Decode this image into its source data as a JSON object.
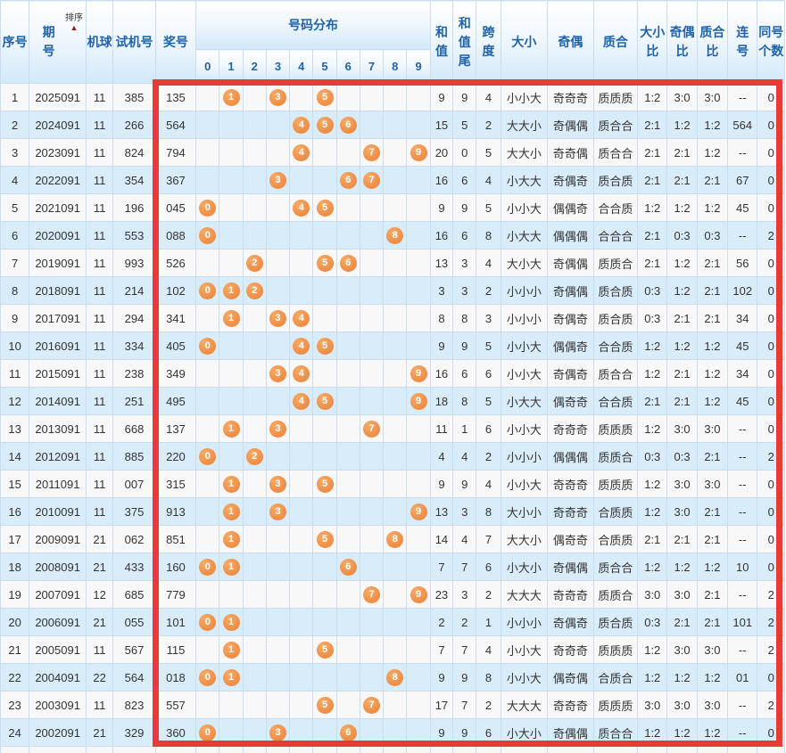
{
  "colors": {
    "header_text": "#1f63a8",
    "ball_orange": "#ef9049",
    "highlight_box_red": "#e83b38",
    "even_row_blue": "#d9ecf9",
    "dist_cell_yellow": "#fcf9e1"
  },
  "table": {
    "headers": {
      "seq": "序号",
      "period": "期\n号",
      "sort": "排序",
      "machine": "机球",
      "test": "试机号",
      "prize": "奖号",
      "distribution": "号码分布",
      "digits": [
        "0",
        "1",
        "2",
        "3",
        "4",
        "5",
        "6",
        "7",
        "8",
        "9"
      ],
      "sum": "和\n值",
      "sum_tail": "和\n值\n尾",
      "span": "跨\n度",
      "size": "大小",
      "parity": "奇偶",
      "prime": "质合",
      "size_ratio": "大小\n比",
      "parity_ratio": "奇偶\n比",
      "prime_ratio": "质合\n比",
      "consecutive": "连\n号",
      "same_count": "同号\n个数"
    },
    "rows": [
      {
        "seq": 1,
        "period": "2025091",
        "machine": "11",
        "test": "385",
        "prize": "135",
        "balls": [
          1,
          3,
          5
        ],
        "sum": "9",
        "sum_tail": "9",
        "span": "4",
        "size": "小小大",
        "parity": "奇奇奇",
        "prime": "质质质",
        "size_ratio": "1:2",
        "parity_ratio": "3:0",
        "prime_ratio": "3:0",
        "consecutive": "--",
        "same_count": "0"
      },
      {
        "seq": 2,
        "period": "2024091",
        "machine": "11",
        "test": "266",
        "prize": "564",
        "balls": [
          4,
          5,
          6
        ],
        "sum": "15",
        "sum_tail": "5",
        "span": "2",
        "size": "大大小",
        "parity": "奇偶偶",
        "prime": "质合合",
        "size_ratio": "2:1",
        "parity_ratio": "1:2",
        "prime_ratio": "1:2",
        "consecutive": "564",
        "same_count": "0"
      },
      {
        "seq": 3,
        "period": "2023091",
        "machine": "11",
        "test": "824",
        "prize": "794",
        "balls": [
          4,
          7,
          9
        ],
        "sum": "20",
        "sum_tail": "0",
        "span": "5",
        "size": "大大小",
        "parity": "奇奇偶",
        "prime": "质合合",
        "size_ratio": "2:1",
        "parity_ratio": "2:1",
        "prime_ratio": "1:2",
        "consecutive": "--",
        "same_count": "0"
      },
      {
        "seq": 4,
        "period": "2022091",
        "machine": "11",
        "test": "354",
        "prize": "367",
        "balls": [
          3,
          6,
          7
        ],
        "sum": "16",
        "sum_tail": "6",
        "span": "4",
        "size": "小大大",
        "parity": "奇偶奇",
        "prime": "质合质",
        "size_ratio": "2:1",
        "parity_ratio": "2:1",
        "prime_ratio": "2:1",
        "consecutive": "67",
        "same_count": "0"
      },
      {
        "seq": 5,
        "period": "2021091",
        "machine": "11",
        "test": "196",
        "prize": "045",
        "balls": [
          0,
          4,
          5
        ],
        "sum": "9",
        "sum_tail": "9",
        "span": "5",
        "size": "小小大",
        "parity": "偶偶奇",
        "prime": "合合质",
        "size_ratio": "1:2",
        "parity_ratio": "1:2",
        "prime_ratio": "1:2",
        "consecutive": "45",
        "same_count": "0"
      },
      {
        "seq": 6,
        "period": "2020091",
        "machine": "11",
        "test": "553",
        "prize": "088",
        "balls": [
          0,
          8
        ],
        "sum": "16",
        "sum_tail": "6",
        "span": "8",
        "size": "小大大",
        "parity": "偶偶偶",
        "prime": "合合合",
        "size_ratio": "2:1",
        "parity_ratio": "0:3",
        "prime_ratio": "0:3",
        "consecutive": "--",
        "same_count": "2"
      },
      {
        "seq": 7,
        "period": "2019091",
        "machine": "11",
        "test": "993",
        "prize": "526",
        "balls": [
          2,
          5,
          6
        ],
        "sum": "13",
        "sum_tail": "3",
        "span": "4",
        "size": "大小大",
        "parity": "奇偶偶",
        "prime": "质质合",
        "size_ratio": "2:1",
        "parity_ratio": "1:2",
        "prime_ratio": "2:1",
        "consecutive": "56",
        "same_count": "0"
      },
      {
        "seq": 8,
        "period": "2018091",
        "machine": "11",
        "test": "214",
        "prize": "102",
        "balls": [
          0,
          1,
          2
        ],
        "sum": "3",
        "sum_tail": "3",
        "span": "2",
        "size": "小小小",
        "parity": "奇偶偶",
        "prime": "质合质",
        "size_ratio": "0:3",
        "parity_ratio": "1:2",
        "prime_ratio": "2:1",
        "consecutive": "102",
        "same_count": "0"
      },
      {
        "seq": 9,
        "period": "2017091",
        "machine": "11",
        "test": "294",
        "prize": "341",
        "balls": [
          1,
          3,
          4
        ],
        "sum": "8",
        "sum_tail": "8",
        "span": "3",
        "size": "小小小",
        "parity": "奇偶奇",
        "prime": "质合质",
        "size_ratio": "0:3",
        "parity_ratio": "2:1",
        "prime_ratio": "2:1",
        "consecutive": "34",
        "same_count": "0"
      },
      {
        "seq": 10,
        "period": "2016091",
        "machine": "11",
        "test": "334",
        "prize": "405",
        "balls": [
          0,
          4,
          5
        ],
        "sum": "9",
        "sum_tail": "9",
        "span": "5",
        "size": "小小大",
        "parity": "偶偶奇",
        "prime": "合合质",
        "size_ratio": "1:2",
        "parity_ratio": "1:2",
        "prime_ratio": "1:2",
        "consecutive": "45",
        "same_count": "0"
      },
      {
        "seq": 11,
        "period": "2015091",
        "machine": "11",
        "test": "238",
        "prize": "349",
        "balls": [
          3,
          4,
          9
        ],
        "sum": "16",
        "sum_tail": "6",
        "span": "6",
        "size": "小小大",
        "parity": "奇偶奇",
        "prime": "质合合",
        "size_ratio": "1:2",
        "parity_ratio": "2:1",
        "prime_ratio": "1:2",
        "consecutive": "34",
        "same_count": "0"
      },
      {
        "seq": 12,
        "period": "2014091",
        "machine": "11",
        "test": "251",
        "prize": "495",
        "balls": [
          4,
          5,
          9
        ],
        "sum": "18",
        "sum_tail": "8",
        "span": "5",
        "size": "小大大",
        "parity": "偶奇奇",
        "prime": "合合质",
        "size_ratio": "2:1",
        "parity_ratio": "2:1",
        "prime_ratio": "1:2",
        "consecutive": "45",
        "same_count": "0"
      },
      {
        "seq": 13,
        "period": "2013091",
        "machine": "11",
        "test": "668",
        "prize": "137",
        "balls": [
          1,
          3,
          7
        ],
        "sum": "11",
        "sum_tail": "1",
        "span": "6",
        "size": "小小大",
        "parity": "奇奇奇",
        "prime": "质质质",
        "size_ratio": "1:2",
        "parity_ratio": "3:0",
        "prime_ratio": "3:0",
        "consecutive": "--",
        "same_count": "0"
      },
      {
        "seq": 14,
        "period": "2012091",
        "machine": "11",
        "test": "885",
        "prize": "220",
        "balls": [
          0,
          2
        ],
        "sum": "4",
        "sum_tail": "4",
        "span": "2",
        "size": "小小小",
        "parity": "偶偶偶",
        "prime": "质质合",
        "size_ratio": "0:3",
        "parity_ratio": "0:3",
        "prime_ratio": "2:1",
        "consecutive": "--",
        "same_count": "2"
      },
      {
        "seq": 15,
        "period": "2011091",
        "machine": "11",
        "test": "007",
        "prize": "315",
        "balls": [
          1,
          3,
          5
        ],
        "sum": "9",
        "sum_tail": "9",
        "span": "4",
        "size": "小小大",
        "parity": "奇奇奇",
        "prime": "质质质",
        "size_ratio": "1:2",
        "parity_ratio": "3:0",
        "prime_ratio": "3:0",
        "consecutive": "--",
        "same_count": "0"
      },
      {
        "seq": 16,
        "period": "2010091",
        "machine": "11",
        "test": "375",
        "prize": "913",
        "balls": [
          1,
          3,
          9
        ],
        "sum": "13",
        "sum_tail": "3",
        "span": "8",
        "size": "大小小",
        "parity": "奇奇奇",
        "prime": "合质质",
        "size_ratio": "1:2",
        "parity_ratio": "3:0",
        "prime_ratio": "2:1",
        "consecutive": "--",
        "same_count": "0"
      },
      {
        "seq": 17,
        "period": "2009091",
        "machine": "21",
        "test": "062",
        "prize": "851",
        "balls": [
          1,
          5,
          8
        ],
        "sum": "14",
        "sum_tail": "4",
        "span": "7",
        "size": "大大小",
        "parity": "偶奇奇",
        "prime": "合质质",
        "size_ratio": "2:1",
        "parity_ratio": "2:1",
        "prime_ratio": "2:1",
        "consecutive": "--",
        "same_count": "0"
      },
      {
        "seq": 18,
        "period": "2008091",
        "machine": "21",
        "test": "433",
        "prize": "160",
        "balls": [
          0,
          1,
          6
        ],
        "sum": "7",
        "sum_tail": "7",
        "span": "6",
        "size": "小大小",
        "parity": "奇偶偶",
        "prime": "质合合",
        "size_ratio": "1:2",
        "parity_ratio": "1:2",
        "prime_ratio": "1:2",
        "consecutive": "10",
        "same_count": "0"
      },
      {
        "seq": 19,
        "period": "2007091",
        "machine": "12",
        "test": "685",
        "prize": "779",
        "balls": [
          7,
          9
        ],
        "sum": "23",
        "sum_tail": "3",
        "span": "2",
        "size": "大大大",
        "parity": "奇奇奇",
        "prime": "质质合",
        "size_ratio": "3:0",
        "parity_ratio": "3:0",
        "prime_ratio": "2:1",
        "consecutive": "--",
        "same_count": "2"
      },
      {
        "seq": 20,
        "period": "2006091",
        "machine": "21",
        "test": "055",
        "prize": "101",
        "balls": [
          0,
          1
        ],
        "sum": "2",
        "sum_tail": "2",
        "span": "1",
        "size": "小小小",
        "parity": "奇偶奇",
        "prime": "质合质",
        "size_ratio": "0:3",
        "parity_ratio": "2:1",
        "prime_ratio": "2:1",
        "consecutive": "101",
        "same_count": "2"
      },
      {
        "seq": 21,
        "period": "2005091",
        "machine": "11",
        "test": "567",
        "prize": "115",
        "balls": [
          1,
          5
        ],
        "sum": "7",
        "sum_tail": "7",
        "span": "4",
        "size": "小小大",
        "parity": "奇奇奇",
        "prime": "质质质",
        "size_ratio": "1:2",
        "parity_ratio": "3:0",
        "prime_ratio": "3:0",
        "consecutive": "--",
        "same_count": "2"
      },
      {
        "seq": 22,
        "period": "2004091",
        "machine": "22",
        "test": "564",
        "prize": "018",
        "balls": [
          0,
          1,
          8
        ],
        "sum": "9",
        "sum_tail": "9",
        "span": "8",
        "size": "小小大",
        "parity": "偶奇偶",
        "prime": "合质合",
        "size_ratio": "1:2",
        "parity_ratio": "1:2",
        "prime_ratio": "1:2",
        "consecutive": "01",
        "same_count": "0"
      },
      {
        "seq": 23,
        "period": "2003091",
        "machine": "11",
        "test": "823",
        "prize": "557",
        "balls": [
          5,
          7
        ],
        "sum": "17",
        "sum_tail": "7",
        "span": "2",
        "size": "大大大",
        "parity": "奇奇奇",
        "prime": "质质质",
        "size_ratio": "3:0",
        "parity_ratio": "3:0",
        "prime_ratio": "3:0",
        "consecutive": "--",
        "same_count": "2"
      },
      {
        "seq": 24,
        "period": "2002091",
        "machine": "21",
        "test": "329",
        "prize": "360",
        "balls": [
          0,
          3,
          6
        ],
        "sum": "9",
        "sum_tail": "9",
        "span": "6",
        "size": "小大小",
        "parity": "奇偶偶",
        "prime": "质合合",
        "size_ratio": "1:2",
        "parity_ratio": "1:2",
        "prime_ratio": "1:2",
        "consecutive": "--",
        "same_count": "0"
      }
    ]
  }
}
